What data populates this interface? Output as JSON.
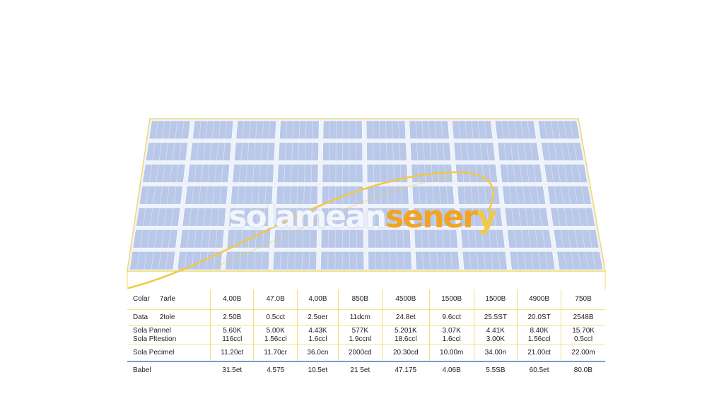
{
  "logo": {
    "part1": "solamean",
    "part2": "sener",
    "part3": "y"
  },
  "colors": {
    "panel_frame": "#f1d96a",
    "cell": "#b9c8e8",
    "cell_highlight": "#d6e0f3",
    "swoosh": "#f2c744",
    "table_rule": "#6fa1d6"
  },
  "table": {
    "rows": [
      {
        "label_a": "Colar",
        "label_b": "7arle",
        "values": [
          "4,00B",
          "47.0B",
          "4,00B",
          "850B",
          "4500B",
          "1500B",
          "1500B",
          "4900B",
          "750B"
        ]
      },
      {
        "label_a": "Data",
        "label_b": "2tole",
        "values": [
          "2.50B",
          "0.5cct",
          "2.5oer",
          "11dcm",
          "24.8et",
          "9.6cct",
          "25.5ST",
          "20.0ST",
          "2548B"
        ]
      },
      {
        "label_a": "Sola Pannel",
        "label_b": "Sola Pltestion",
        "values": [
          "5.60K",
          "5.00K",
          "4.43K",
          "577K",
          "5.201K",
          "3.07K",
          "4.41K",
          "8.40K",
          "15.70K"
        ],
        "values2": [
          "116ccl",
          "1.56ccl",
          "1.6ccl",
          "1.9ccnl",
          "18.6ccl",
          "1.6ccl",
          "3.00K",
          "1.56ccl",
          "0.5ccl"
        ]
      },
      {
        "label_a": "Sola Pecimel",
        "label_b": "",
        "values": [
          "11.20ct",
          "11.70cr",
          "36.0cn",
          "2000cd",
          "20.30cd",
          "10.00m",
          "34.00n",
          "21.00ct",
          "22.00m"
        ]
      },
      {
        "label_a": "Babel",
        "label_b": "",
        "values": [
          "31.5et",
          "4.575",
          "10.5et",
          "21 5et",
          "47.175",
          "4.06B",
          "5.5SB",
          "60.5et",
          "80.0B"
        ]
      }
    ]
  }
}
